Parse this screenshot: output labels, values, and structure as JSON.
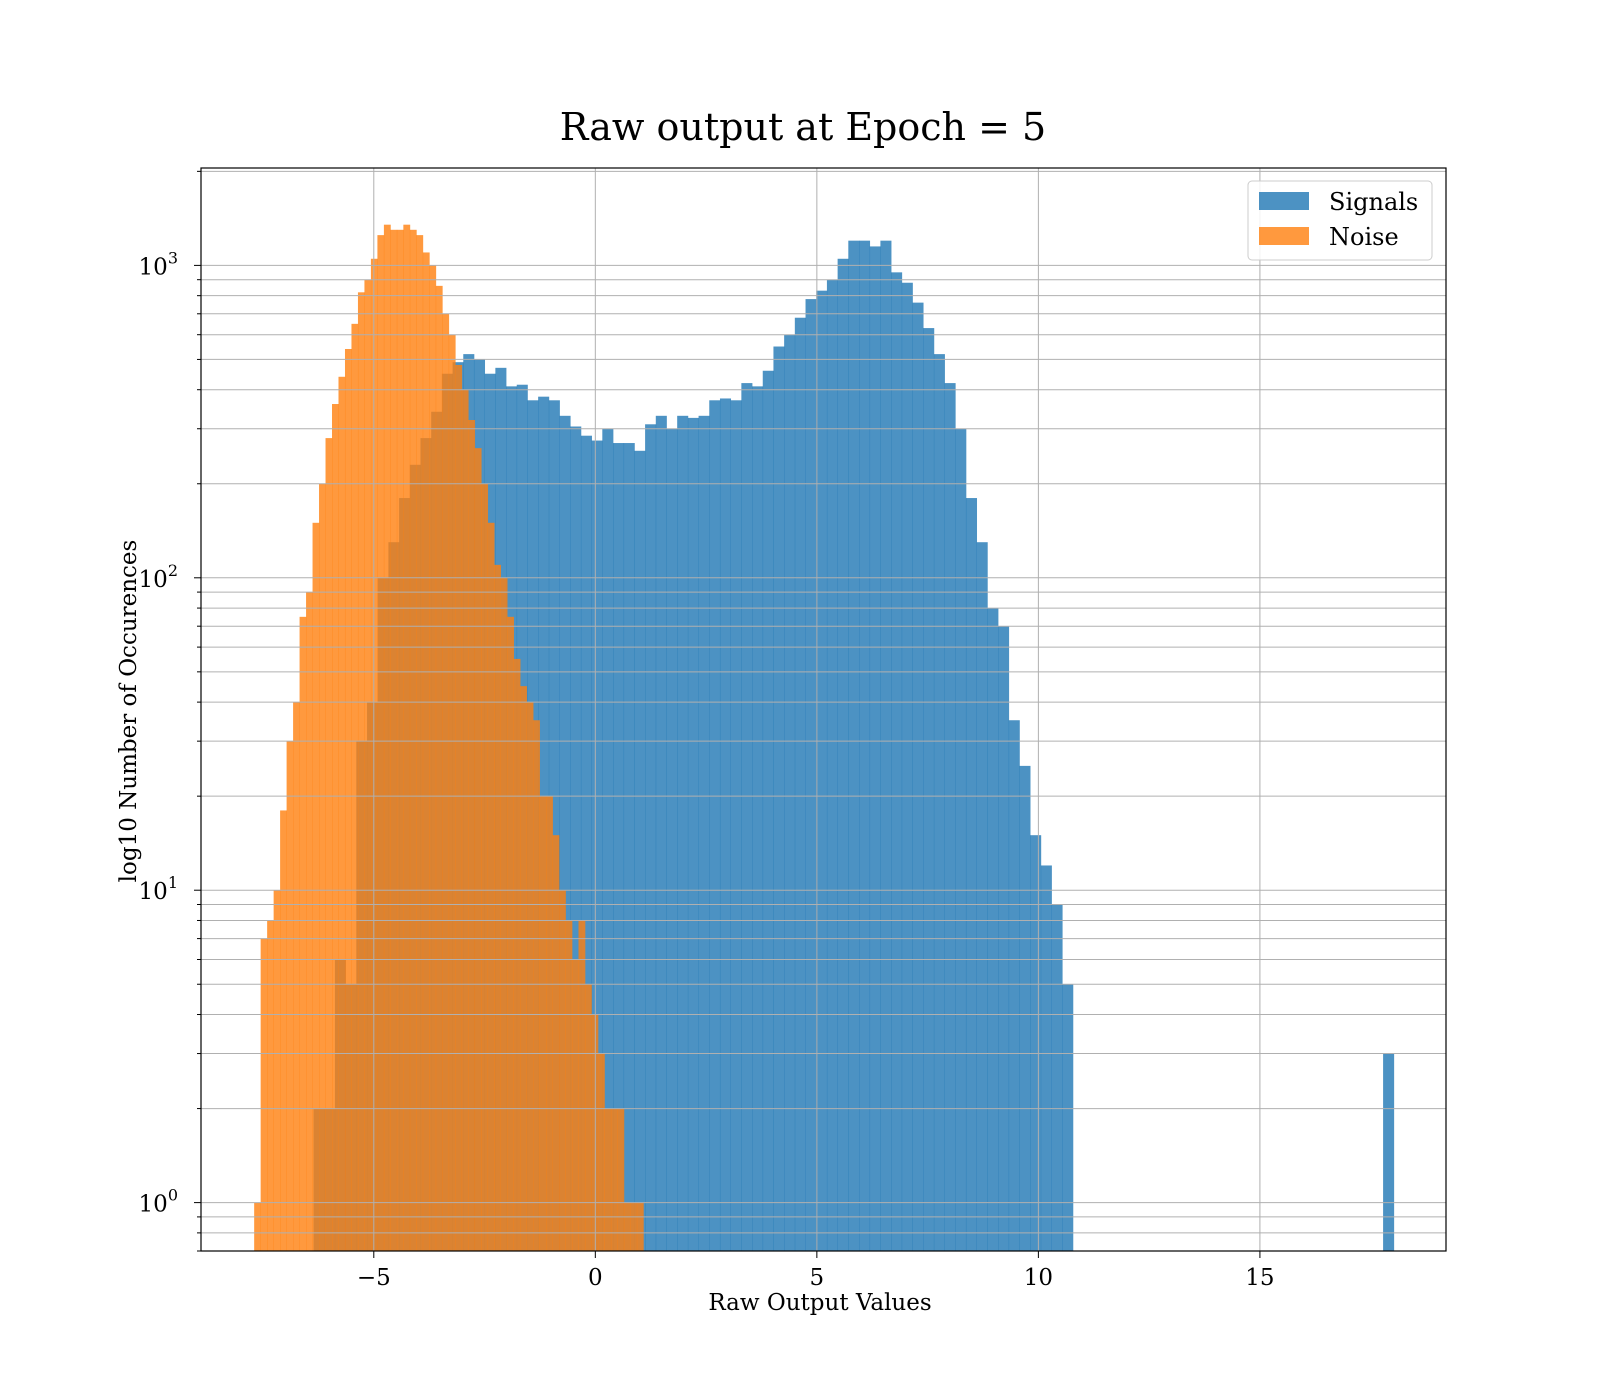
{
  "chart_data": {
    "type": "histogram",
    "title": "Raw output at Epoch = 5",
    "xlabel": "Raw Output Values",
    "ylabel": "log10 Number of Occurences",
    "xlim": [
      -8.9,
      19.2
    ],
    "ylim": [
      0.7,
      2050
    ],
    "yscale": "log",
    "grid": true,
    "legend_position": "top-right",
    "x_ticks": [
      {
        "value": -5,
        "label": "−5"
      },
      {
        "value": 0,
        "label": "0"
      },
      {
        "value": 5,
        "label": "5"
      },
      {
        "value": 10,
        "label": "10"
      },
      {
        "value": 15,
        "label": "15"
      }
    ],
    "y_ticks": [
      {
        "value": 1,
        "label_base": "10",
        "label_exp": "0"
      },
      {
        "value": 10,
        "label_base": "10",
        "label_exp": "1"
      },
      {
        "value": 100,
        "label_base": "10",
        "label_exp": "2"
      },
      {
        "value": 1000,
        "label_base": "10",
        "label_exp": "3"
      }
    ],
    "series": [
      {
        "name": "Signals",
        "color": "#1f77b4",
        "alpha": 0.8,
        "bin_start": -6.36,
        "bin_width": 0.2414,
        "counts": [
          2,
          2,
          6,
          5,
          30,
          40,
          100,
          130,
          180,
          230,
          280,
          340,
          450,
          490,
          520,
          500,
          450,
          470,
          410,
          415,
          370,
          380,
          370,
          330,
          305,
          285,
          275,
          300,
          270,
          270,
          255,
          310,
          330,
          300,
          330,
          325,
          330,
          370,
          375,
          370,
          420,
          410,
          460,
          550,
          600,
          680,
          780,
          830,
          900,
          1050,
          1200,
          1200,
          1150,
          1200,
          950,
          880,
          760,
          630,
          520,
          420,
          300,
          180,
          130,
          80,
          70,
          35,
          25,
          15,
          12,
          9,
          5,
          0,
          0,
          0,
          0,
          0,
          0,
          0,
          0,
          0,
          0,
          0,
          0,
          0,
          0,
          0,
          0,
          0,
          0,
          0,
          0,
          0,
          0,
          0,
          0,
          0,
          0,
          0,
          0,
          0,
          3
        ]
      },
      {
        "name": "Noise",
        "color": "#ff7f0e",
        "alpha": 0.8,
        "bin_start": -7.7,
        "bin_width": 0.1464,
        "counts": [
          1,
          7,
          8,
          10,
          18,
          30,
          40,
          75,
          90,
          150,
          200,
          280,
          360,
          440,
          540,
          650,
          820,
          900,
          1050,
          1250,
          1350,
          1300,
          1300,
          1350,
          1300,
          1250,
          1100,
          1000,
          860,
          700,
          600,
          480,
          400,
          320,
          260,
          200,
          150,
          110,
          100,
          75,
          55,
          45,
          40,
          35,
          20,
          20,
          15,
          10,
          8,
          6,
          8,
          5,
          4,
          3,
          2,
          2,
          2,
          1,
          1,
          1
        ]
      }
    ]
  }
}
